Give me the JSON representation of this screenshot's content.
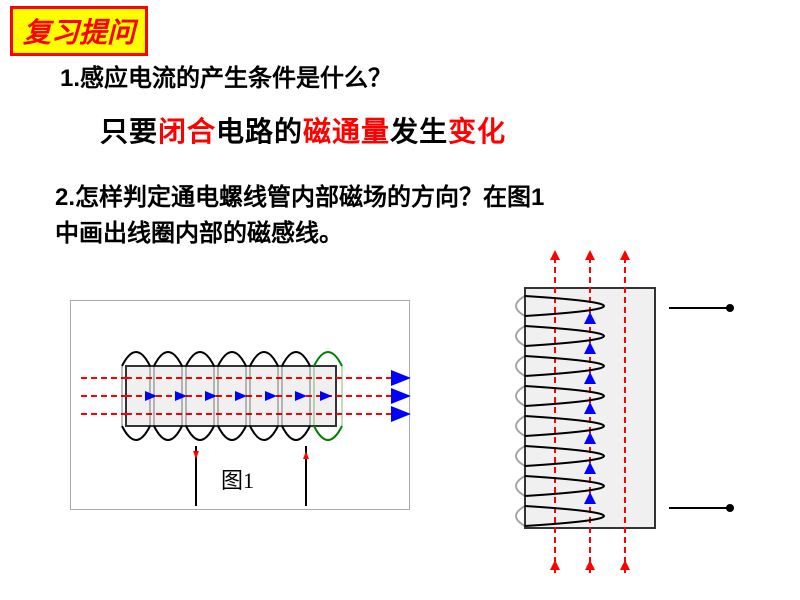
{
  "title": {
    "text": "复习提问",
    "bg_color": "#ffff00",
    "border_color": "#ff0000",
    "text_color": "#ff0000",
    "fontsize": 28
  },
  "q1": {
    "number": "1.",
    "text": "感应电流的产生条件是什么？",
    "color": "#000000",
    "fontsize": 24
  },
  "answer1": {
    "parts": [
      {
        "text": "只要",
        "color": "#000000"
      },
      {
        "text": "闭合",
        "color": "#ff0000"
      },
      {
        "text": "电路的",
        "color": "#000000"
      },
      {
        "text": "磁通量",
        "color": "#ff0000"
      },
      {
        "text": "发生",
        "color": "#000000"
      },
      {
        "text": "变化",
        "color": "#ff0000"
      }
    ],
    "fontsize": 28
  },
  "q2": {
    "number": "2.",
    "text_line1": "怎样判定通电螺线管内部磁场的方向？在图1",
    "text_line2": "中画出线圈内部的磁感线。",
    "color": "#000000",
    "fontsize": 24
  },
  "fig1": {
    "label": "图1",
    "label_fontsize": 22,
    "core_fill": "#f0f0f0",
    "core_stroke": "#333333",
    "coil_color": "#000000",
    "arrow_color": "#ff0000",
    "arrowhead_fill": "#0000ff",
    "lead_color": "#000000",
    "accent_coil": "#008000"
  },
  "fig2": {
    "core_fill": "#f0f0f0",
    "core_stroke": "#333333",
    "coil_color": "#000000",
    "arrow_color": "#ff0000",
    "arrowhead_fill": "#0000ff",
    "lead_color": "#000000"
  }
}
